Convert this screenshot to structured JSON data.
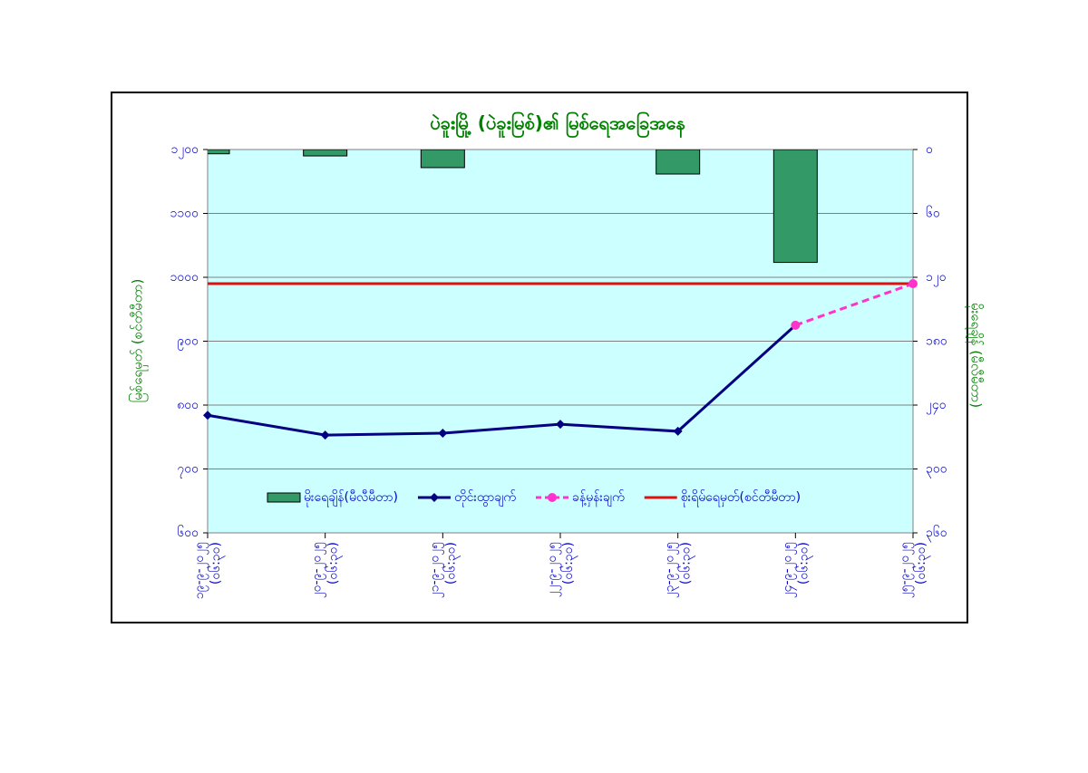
{
  "chart_data": {
    "type": "combo",
    "title": "ပဲခူးမြို့ (ပဲခူးမြစ်)၏ မြစ်ရေအခြေအနေ",
    "y_label": "မြစ်ရေမှတ် (စင်တီမီတာ)",
    "y2_label": "မိုးရေချိန် (မီလီမီတာ)",
    "categories": [
      [
        "၁၉-၉-၂၀၂၅",
        "(၀၆:၃၀)"
      ],
      [
        "၂၀-၉-၂၀၂၅",
        "(၀၆:၃၀)"
      ],
      [
        "၂၁-၉-၂၀၂၅",
        "(၀၆:၃၀)"
      ],
      [
        "၂၂-၉-၂၀၂၅",
        "(၀၆:၃၀)"
      ],
      [
        "၂၃-၉-၂၀၂၅",
        "(၀၆:၃၀)"
      ],
      [
        "၂၄-၉-၂၀၂၅",
        "(၀၆:၃၀)"
      ],
      [
        "၂၅-၉-၂၀၂၅",
        "(၀၆:၃၀)"
      ]
    ],
    "series": [
      {
        "name": "မိုးရေချိန်(မီလီမီတာ)",
        "kind": "bar",
        "axis": "y2",
        "color": "#339966",
        "values": [
          4,
          6,
          17,
          null,
          23,
          106,
          null
        ]
      },
      {
        "name": "တိုင်းထွာချက်",
        "kind": "line",
        "color": "#000080",
        "values": [
          784,
          753,
          756,
          770,
          759,
          925,
          null
        ]
      },
      {
        "name": "ခန့်မှန်းချက်",
        "kind": "dashed",
        "color": "#ff33cc",
        "values": [
          null,
          null,
          null,
          null,
          null,
          925,
          990
        ]
      }
    ],
    "danger": {
      "name": "စိုးရိမ်ရေမှတ်(စင်တီမီတာ)",
      "value": 990,
      "color": "#e01010"
    },
    "ylim": [
      600,
      1200
    ],
    "yticks": [
      {
        "value": 1200,
        "label": "၁၂၀၀"
      },
      {
        "value": 1100,
        "label": "၁၁၀၀"
      },
      {
        "value": 1000,
        "label": "၁၀၀၀"
      },
      {
        "value": 900,
        "label": "၉၀၀"
      },
      {
        "value": 800,
        "label": "၈၀၀"
      },
      {
        "value": 700,
        "label": "၇၀၀"
      },
      {
        "value": 600,
        "label": "၆၀၀"
      }
    ],
    "y2lim": [
      0,
      360
    ],
    "y2_inverted": true,
    "y2ticks": [
      {
        "value": 0,
        "label": "၀"
      },
      {
        "value": 60,
        "label": "၆၀"
      },
      {
        "value": 120,
        "label": "၁၂၀"
      },
      {
        "value": 180,
        "label": "၁၈၀"
      },
      {
        "value": 240,
        "label": "၂၄၀"
      },
      {
        "value": 300,
        "label": "၃၀၀"
      },
      {
        "value": 360,
        "label": "၃၆၀"
      }
    ],
    "grid": true
  }
}
